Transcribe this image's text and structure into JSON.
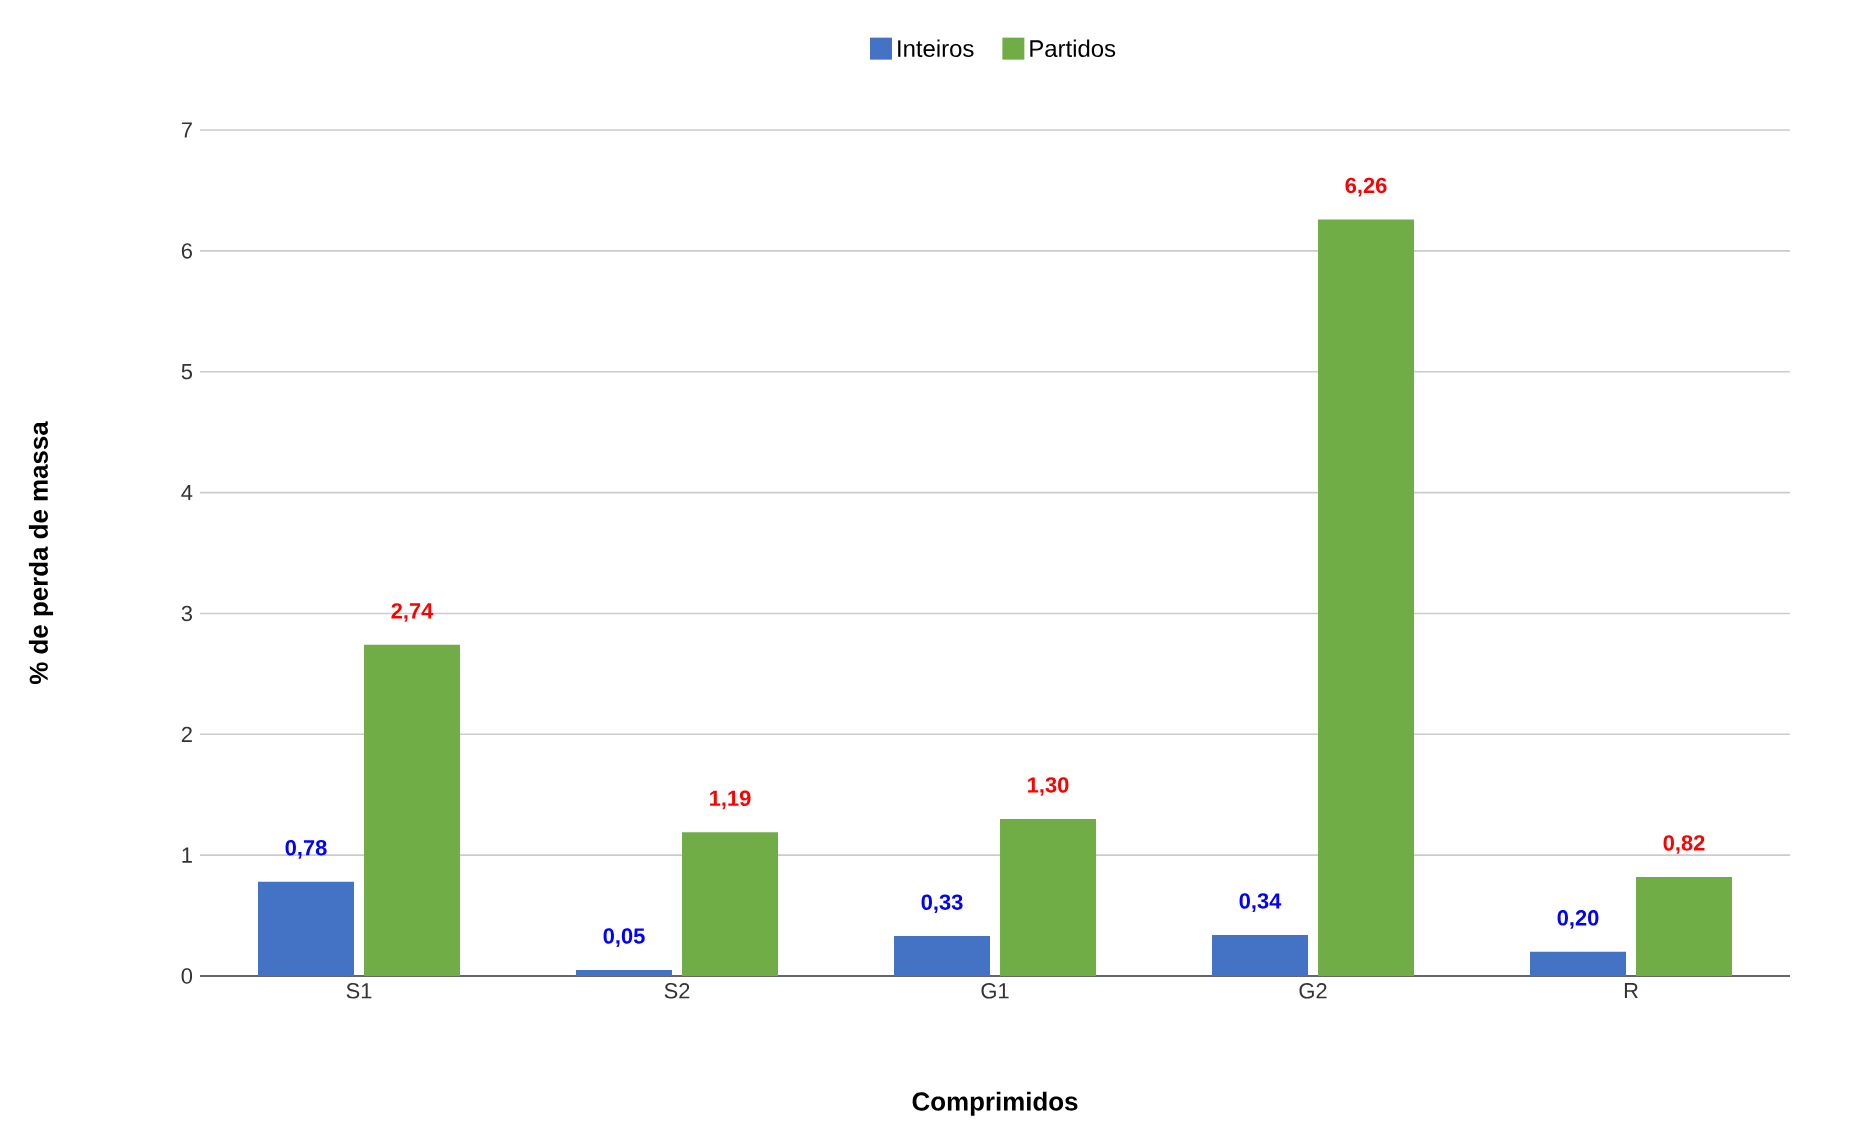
{
  "chart_data": {
    "type": "bar",
    "xlabel": "Comprimidos",
    "ylabel": "% de perda de massa",
    "categories": [
      "S1",
      "S2",
      "G1",
      "G2",
      "R"
    ],
    "series": [
      {
        "name": "Inteiros",
        "color": "#4472c4",
        "values": [
          0.78,
          0.05,
          0.33,
          0.34,
          0.2
        ],
        "value_labels": [
          "0,78",
          "0,05",
          "0,33",
          "0,34",
          "0,20"
        ]
      },
      {
        "name": "Partidos",
        "color": "#70ad47",
        "values": [
          2.74,
          1.19,
          1.3,
          6.26,
          0.82
        ],
        "value_labels": [
          "2,74",
          "1,19",
          "1,30",
          "6,26",
          "0,82"
        ]
      }
    ],
    "ylim": [
      0,
      7
    ],
    "yticks": [
      0,
      1,
      2,
      3,
      4,
      5,
      6,
      7
    ],
    "grid": "y",
    "legend": "top"
  }
}
